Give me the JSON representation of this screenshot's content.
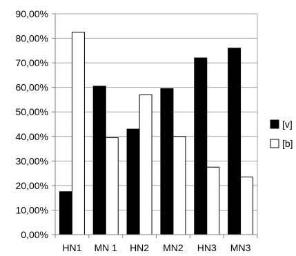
{
  "chart_data": {
    "type": "bar",
    "categories": [
      "HN1",
      "MN 1",
      "HN2",
      "MN2",
      "HN3",
      "MN3"
    ],
    "series": [
      {
        "name": "[v]",
        "values": [
          17.5,
          60.5,
          43.0,
          59.5,
          72.0,
          76.0
        ],
        "color": "#000000"
      },
      {
        "name": "[b]",
        "values": [
          82.5,
          39.5,
          57.0,
          40.0,
          27.5,
          23.5
        ],
        "color": "#ffffff"
      }
    ],
    "y_ticks": [
      "0,00%",
      "10,00%",
      "20,00%",
      "30,00%",
      "40,00%",
      "50,00%",
      "60,00%",
      "70,00%",
      "80,00%",
      "90,00%"
    ],
    "ylim": [
      0,
      90
    ],
    "grid": true,
    "legend_position": "right"
  }
}
